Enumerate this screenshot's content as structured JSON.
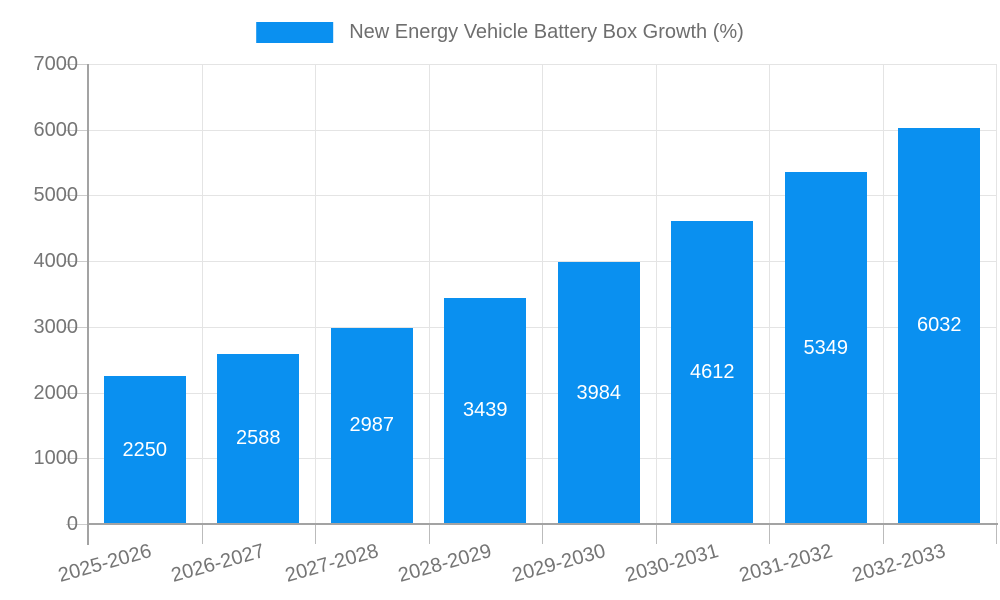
{
  "chart_data": {
    "type": "bar",
    "title": "New Energy Vehicle Battery Box Growth (%)",
    "legend": {
      "label": "New Energy Vehicle Battery Box Growth (%)",
      "position": "top-center"
    },
    "categories": [
      "2025-2026",
      "2026-2027",
      "2027-2028",
      "2028-2029",
      "2029-2030",
      "2030-2031",
      "2031-2032",
      "2032-2033"
    ],
    "values": [
      2250,
      2588,
      2987,
      3439,
      3984,
      4612,
      5349,
      6032
    ],
    "xlabel": "",
    "ylabel": "",
    "ylim": [
      0,
      7000
    ],
    "y_ticks": [
      0,
      1000,
      2000,
      3000,
      4000,
      5000,
      6000,
      7000
    ],
    "grid": true,
    "value_labels": "inside-center-white",
    "x_tick_label_rotation_deg": -15.5,
    "colors": {
      "bar": "#0a90f0",
      "bar_value_text": "#ffffff",
      "axis_text": "#757575",
      "legend_text": "#6e6e6e",
      "axis_line": "#a3a3a3",
      "gridline": "#e4e4e4"
    }
  }
}
